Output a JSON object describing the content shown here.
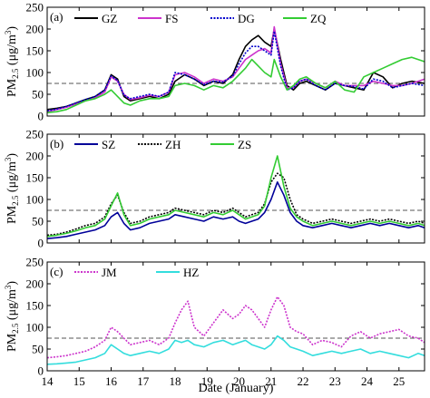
{
  "chart_data": [
    {
      "type": "line",
      "panel_label": "(a)",
      "ylabel_main": "PM",
      "ylabel_sub": "2.5",
      "ylabel_unit": " (μg/m",
      "ylabel_sup": "3",
      "ylabel_close": ")",
      "xlim": [
        14,
        25.8
      ],
      "ylim": [
        0,
        250
      ],
      "yticks": [
        "0",
        "50",
        "100",
        "150",
        "200",
        "250"
      ],
      "reference_line": 75,
      "series": [
        {
          "name": "GZ",
          "color": "#000000",
          "style": "solid",
          "x": [
            14,
            14.3,
            14.6,
            14.9,
            15.2,
            15.5,
            15.8,
            16.0,
            16.2,
            16.4,
            16.6,
            16.9,
            17.2,
            17.5,
            17.8,
            18.0,
            18.3,
            18.6,
            18.9,
            19.2,
            19.5,
            19.8,
            20.0,
            20.2,
            20.4,
            20.6,
            20.8,
            21.0,
            21.1,
            21.3,
            21.5,
            21.7,
            21.9,
            22.1,
            22.4,
            22.7,
            23.0,
            23.3,
            23.6,
            23.9,
            24.2,
            24.5,
            24.8,
            25.1,
            25.4,
            25.8
          ],
          "y": [
            15,
            18,
            22,
            30,
            38,
            45,
            60,
            95,
            85,
            45,
            35,
            40,
            45,
            40,
            50,
            80,
            95,
            85,
            70,
            80,
            75,
            95,
            130,
            160,
            175,
            185,
            170,
            160,
            200,
            130,
            70,
            60,
            75,
            80,
            70,
            60,
            75,
            70,
            65,
            60,
            100,
            90,
            65,
            75,
            80,
            75
          ]
        },
        {
          "name": "FS",
          "color": "#cc33cc",
          "style": "solid",
          "x": [
            14,
            14.3,
            14.6,
            14.9,
            15.2,
            15.5,
            15.8,
            16.0,
            16.2,
            16.4,
            16.6,
            16.9,
            17.2,
            17.5,
            17.8,
            18.0,
            18.3,
            18.6,
            18.9,
            19.2,
            19.5,
            19.8,
            20.0,
            20.2,
            20.4,
            20.6,
            20.8,
            21.0,
            21.1,
            21.3,
            21.5,
            21.7,
            21.9,
            22.1,
            22.4,
            22.7,
            23.0,
            23.3,
            23.6,
            23.9,
            24.2,
            24.5,
            24.8,
            25.1,
            25.4,
            25.8
          ],
          "y": [
            10,
            15,
            20,
            28,
            35,
            42,
            55,
            90,
            80,
            50,
            38,
            42,
            48,
            45,
            55,
            95,
            100,
            90,
            75,
            85,
            80,
            90,
            110,
            130,
            140,
            150,
            155,
            145,
            205,
            120,
            65,
            65,
            80,
            85,
            75,
            65,
            80,
            70,
            70,
            70,
            80,
            75,
            70,
            70,
            75,
            85
          ]
        },
        {
          "name": "DG",
          "color": "#0000cc",
          "style": "dotted",
          "x": [
            14,
            14.3,
            14.6,
            14.9,
            15.2,
            15.5,
            15.8,
            16.0,
            16.2,
            16.4,
            16.6,
            16.9,
            17.2,
            17.5,
            17.8,
            18.0,
            18.3,
            18.6,
            18.9,
            19.2,
            19.5,
            19.8,
            20.0,
            20.2,
            20.4,
            20.6,
            20.8,
            21.0,
            21.1,
            21.3,
            21.5,
            21.7,
            21.9,
            22.1,
            22.4,
            22.7,
            23.0,
            23.3,
            23.6,
            23.9,
            24.2,
            24.5,
            24.8,
            25.1,
            25.4,
            25.8
          ],
          "y": [
            12,
            16,
            22,
            30,
            38,
            45,
            60,
            92,
            82,
            48,
            40,
            45,
            50,
            45,
            55,
            100,
            95,
            85,
            72,
            80,
            78,
            92,
            120,
            145,
            160,
            160,
            150,
            140,
            195,
            115,
            60,
            65,
            80,
            85,
            70,
            60,
            75,
            70,
            68,
            62,
            85,
            80,
            65,
            70,
            75,
            70
          ]
        },
        {
          "name": "ZQ",
          "color": "#33cc33",
          "style": "solid",
          "x": [
            14,
            14.3,
            14.6,
            14.9,
            15.2,
            15.5,
            15.8,
            16.0,
            16.2,
            16.4,
            16.6,
            16.9,
            17.2,
            17.5,
            17.8,
            18.0,
            18.3,
            18.6,
            18.9,
            19.2,
            19.5,
            19.8,
            20.0,
            20.2,
            20.4,
            20.6,
            20.8,
            21.0,
            21.1,
            21.3,
            21.5,
            21.7,
            21.9,
            22.1,
            22.4,
            22.7,
            23.0,
            23.3,
            23.6,
            23.9,
            24.2,
            24.5,
            24.8,
            25.1,
            25.4,
            25.8
          ],
          "y": [
            8,
            10,
            15,
            25,
            35,
            40,
            50,
            60,
            45,
            30,
            25,
            35,
            40,
            40,
            45,
            70,
            75,
            70,
            60,
            70,
            65,
            80,
            95,
            110,
            130,
            115,
            100,
            90,
            130,
            90,
            60,
            70,
            85,
            90,
            75,
            65,
            80,
            60,
            55,
            90,
            100,
            110,
            120,
            130,
            135,
            125
          ]
        }
      ]
    },
    {
      "type": "line",
      "panel_label": "(b)",
      "ylabel_main": "PM",
      "ylabel_sub": "2.5",
      "ylabel_unit": " (μg/m",
      "ylabel_sup": "3",
      "ylabel_close": ")",
      "xlim": [
        14,
        25.8
      ],
      "ylim": [
        0,
        250
      ],
      "yticks": [
        "0",
        "50",
        "100",
        "150",
        "200",
        "250"
      ],
      "reference_line": 75,
      "series": [
        {
          "name": "SZ",
          "color": "#000099",
          "style": "solid",
          "x": [
            14,
            14.3,
            14.6,
            14.9,
            15.2,
            15.5,
            15.8,
            16.0,
            16.2,
            16.4,
            16.6,
            16.9,
            17.2,
            17.5,
            17.8,
            18.0,
            18.3,
            18.6,
            18.9,
            19.2,
            19.5,
            19.8,
            20.0,
            20.2,
            20.4,
            20.6,
            20.8,
            21.0,
            21.2,
            21.4,
            21.6,
            21.8,
            22.0,
            22.3,
            22.6,
            22.9,
            23.2,
            23.5,
            23.8,
            24.1,
            24.4,
            24.7,
            25.0,
            25.3,
            25.6,
            25.8
          ],
          "y": [
            10,
            12,
            15,
            20,
            25,
            30,
            40,
            60,
            70,
            45,
            30,
            35,
            45,
            50,
            55,
            65,
            60,
            55,
            50,
            60,
            55,
            60,
            50,
            45,
            50,
            55,
            70,
            100,
            140,
            110,
            70,
            50,
            40,
            35,
            40,
            45,
            40,
            35,
            40,
            45,
            40,
            45,
            40,
            35,
            40,
            35
          ]
        },
        {
          "name": "ZH",
          "color": "#000000",
          "style": "dotted",
          "x": [
            14,
            14.3,
            14.6,
            14.9,
            15.2,
            15.5,
            15.8,
            16.0,
            16.2,
            16.4,
            16.6,
            16.9,
            17.2,
            17.5,
            17.8,
            18.0,
            18.3,
            18.6,
            18.9,
            19.2,
            19.5,
            19.8,
            20.0,
            20.2,
            20.4,
            20.6,
            20.8,
            21.0,
            21.2,
            21.4,
            21.6,
            21.8,
            22.0,
            22.3,
            22.6,
            22.9,
            23.2,
            23.5,
            23.8,
            24.1,
            24.4,
            24.7,
            25.0,
            25.3,
            25.6,
            25.8
          ],
          "y": [
            18,
            20,
            25,
            32,
            40,
            45,
            60,
            90,
            110,
            70,
            45,
            50,
            60,
            65,
            70,
            80,
            75,
            70,
            65,
            75,
            70,
            80,
            70,
            60,
            65,
            70,
            90,
            140,
            160,
            150,
            100,
            65,
            55,
            45,
            50,
            55,
            50,
            45,
            50,
            55,
            50,
            55,
            50,
            45,
            50,
            45
          ]
        },
        {
          "name": "ZS",
          "color": "#33cc33",
          "style": "solid",
          "x": [
            14,
            14.3,
            14.6,
            14.9,
            15.2,
            15.5,
            15.8,
            16.0,
            16.2,
            16.4,
            16.6,
            16.9,
            17.2,
            17.5,
            17.8,
            18.0,
            18.3,
            18.6,
            18.9,
            19.2,
            19.5,
            19.8,
            20.0,
            20.2,
            20.4,
            20.6,
            20.8,
            21.0,
            21.2,
            21.4,
            21.6,
            21.8,
            22.0,
            22.3,
            22.6,
            22.9,
            23.2,
            23.5,
            23.8,
            24.1,
            24.4,
            24.7,
            25.0,
            25.3,
            25.6,
            25.8
          ],
          "y": [
            15,
            18,
            22,
            28,
            35,
            40,
            55,
            85,
            115,
            65,
            40,
            45,
            55,
            60,
            65,
            75,
            70,
            65,
            60,
            70,
            65,
            75,
            65,
            55,
            60,
            65,
            85,
            150,
            200,
            130,
            80,
            60,
            50,
            40,
            45,
            50,
            45,
            40,
            45,
            50,
            45,
            50,
            45,
            40,
            45,
            40
          ]
        }
      ]
    },
    {
      "type": "line",
      "panel_label": "(c)",
      "ylabel_main": "PM",
      "ylabel_sub": "2.5",
      "ylabel_unit": " (μg/m",
      "ylabel_sup": "3",
      "ylabel_close": ")",
      "xlabel": "Date (January)",
      "xlim": [
        14,
        25.8
      ],
      "ylim": [
        0,
        250
      ],
      "yticks": [
        "0",
        "50",
        "100",
        "150",
        "200",
        "250"
      ],
      "xticks": [
        "14",
        "15",
        "16",
        "17",
        "18",
        "19",
        "20",
        "21",
        "22",
        "23",
        "24",
        "25"
      ],
      "reference_line": 75,
      "series": [
        {
          "name": "JM",
          "color": "#cc33cc",
          "style": "dotted",
          "x": [
            14,
            14.3,
            14.6,
            14.9,
            15.2,
            15.5,
            15.8,
            16.0,
            16.2,
            16.4,
            16.6,
            16.9,
            17.2,
            17.5,
            17.8,
            18.0,
            18.2,
            18.4,
            18.6,
            18.9,
            19.2,
            19.5,
            19.8,
            20.0,
            20.2,
            20.4,
            20.6,
            20.8,
            21.0,
            21.2,
            21.4,
            21.6,
            21.8,
            22.0,
            22.3,
            22.6,
            22.9,
            23.2,
            23.5,
            23.8,
            24.1,
            24.4,
            24.7,
            25.0,
            25.3,
            25.6,
            25.8
          ],
          "y": [
            30,
            32,
            35,
            40,
            45,
            55,
            70,
            100,
            90,
            75,
            60,
            65,
            70,
            60,
            75,
            110,
            140,
            160,
            100,
            80,
            110,
            140,
            120,
            130,
            150,
            140,
            120,
            100,
            140,
            170,
            150,
            100,
            90,
            85,
            60,
            70,
            65,
            55,
            80,
            90,
            75,
            85,
            90,
            95,
            80,
            75,
            65
          ]
        },
        {
          "name": "HZ",
          "color": "#33dddd",
          "style": "solid",
          "x": [
            14,
            14.3,
            14.6,
            14.9,
            15.2,
            15.5,
            15.8,
            16.0,
            16.2,
            16.4,
            16.6,
            16.9,
            17.2,
            17.5,
            17.8,
            18.0,
            18.2,
            18.4,
            18.6,
            18.9,
            19.2,
            19.5,
            19.8,
            20.0,
            20.2,
            20.4,
            20.6,
            20.8,
            21.0,
            21.2,
            21.4,
            21.6,
            21.8,
            22.0,
            22.3,
            22.6,
            22.9,
            23.2,
            23.5,
            23.8,
            24.1,
            24.4,
            24.7,
            25.0,
            25.3,
            25.6,
            25.8
          ],
          "y": [
            15,
            16,
            18,
            20,
            25,
            30,
            40,
            60,
            50,
            40,
            35,
            40,
            45,
            40,
            50,
            70,
            65,
            70,
            60,
            55,
            65,
            70,
            60,
            65,
            70,
            60,
            55,
            50,
            60,
            80,
            70,
            55,
            50,
            45,
            35,
            40,
            45,
            40,
            45,
            50,
            40,
            45,
            40,
            35,
            30,
            40,
            35
          ]
        }
      ]
    }
  ]
}
